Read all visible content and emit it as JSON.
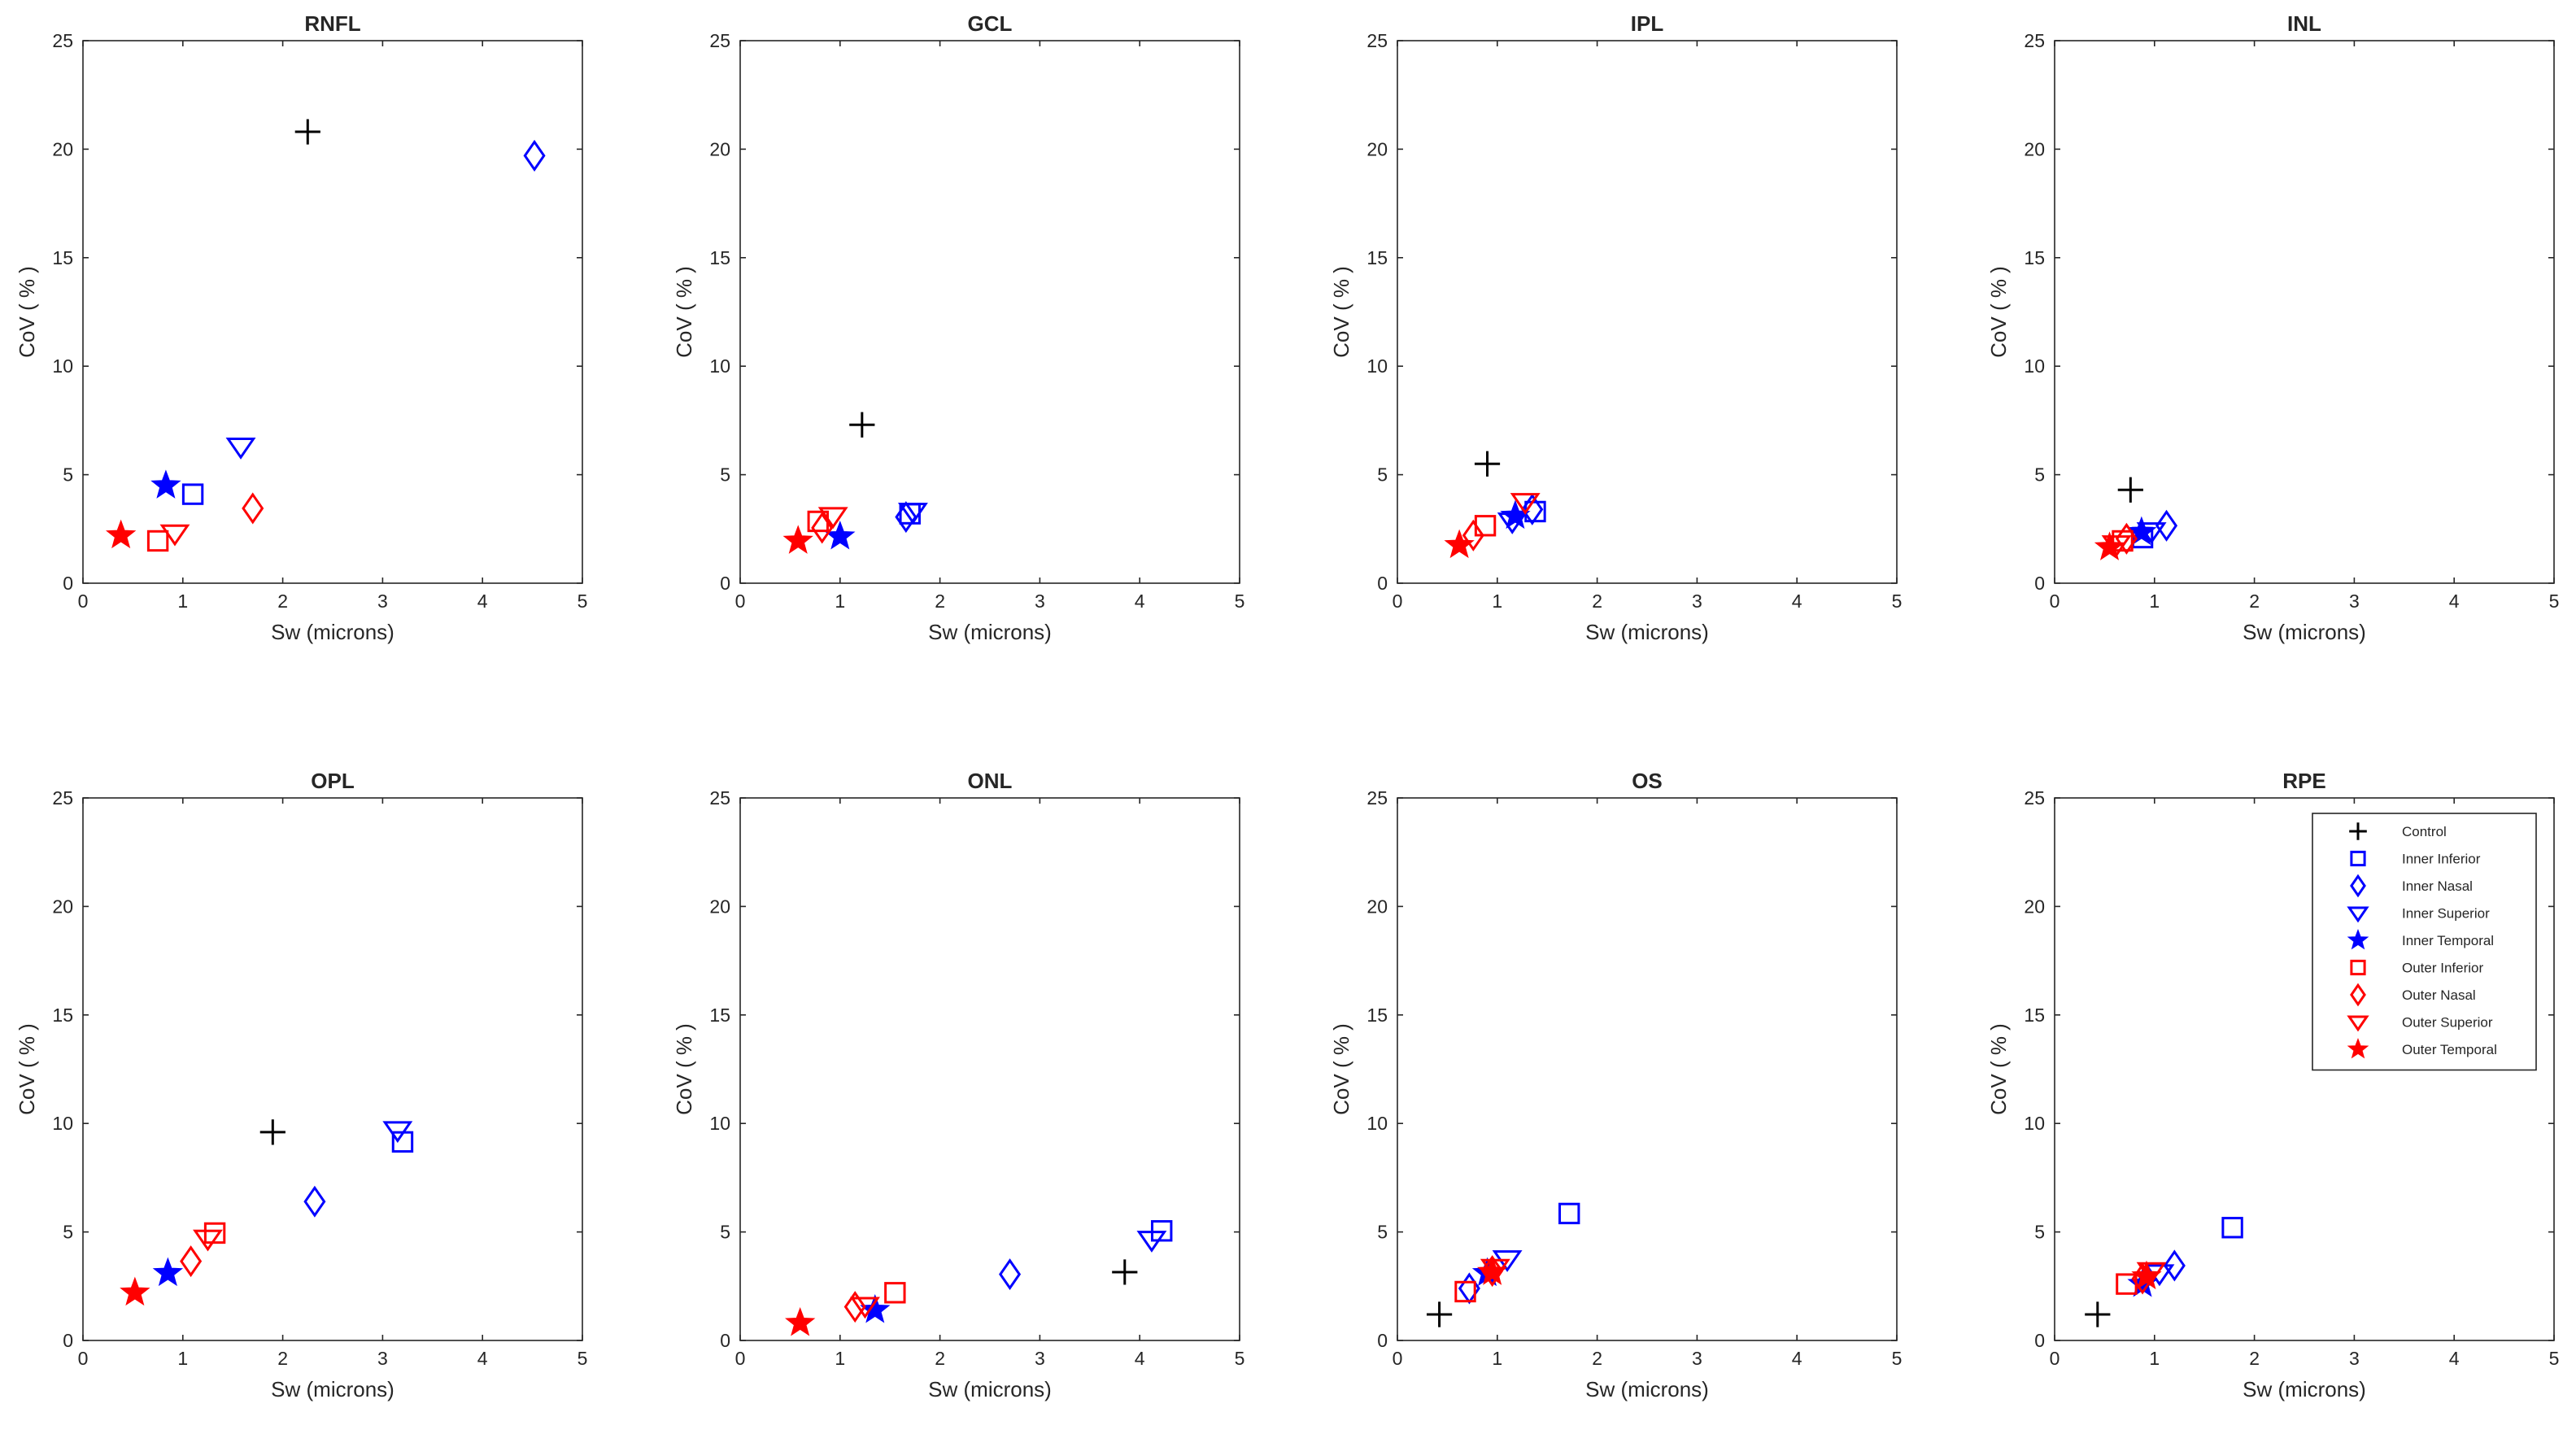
{
  "chart_data": {
    "type": "scatter",
    "xlabel": "Sw (microns)",
    "ylabel": "CoV ( % )",
    "xlim": [
      0,
      5
    ],
    "ylim": [
      0,
      25
    ],
    "xticks": [
      0,
      1,
      2,
      3,
      4,
      5
    ],
    "yticks": [
      0,
      5,
      10,
      15,
      20,
      25
    ],
    "legend_location": "top-right of RPE panel",
    "series_styles": [
      {
        "name": "Control",
        "marker": "plus",
        "color": "#000000"
      },
      {
        "name": "Inner Inferior",
        "marker": "square",
        "color": "#0000ff"
      },
      {
        "name": "Inner Nasal",
        "marker": "diamond",
        "color": "#0000ff"
      },
      {
        "name": "Inner Superior",
        "marker": "triangle-down",
        "color": "#0000ff"
      },
      {
        "name": "Inner Temporal",
        "marker": "star",
        "color": "#0000ff"
      },
      {
        "name": "Outer Inferior",
        "marker": "square",
        "color": "#ff0000"
      },
      {
        "name": "Outer Nasal",
        "marker": "diamond",
        "color": "#ff0000"
      },
      {
        "name": "Outer Superior",
        "marker": "triangle-down",
        "color": "#ff0000"
      },
      {
        "name": "Outer Temporal",
        "marker": "star",
        "color": "#ff0000"
      }
    ],
    "panels": [
      {
        "title": "RNFL",
        "points": [
          {
            "series": "Control",
            "x": 2.25,
            "y": 20.8
          },
          {
            "series": "Inner Inferior",
            "x": 1.1,
            "y": 4.1
          },
          {
            "series": "Inner Nasal",
            "x": 4.52,
            "y": 19.7
          },
          {
            "series": "Inner Superior",
            "x": 1.58,
            "y": 6.3
          },
          {
            "series": "Inner Temporal",
            "x": 0.83,
            "y": 4.5
          },
          {
            "series": "Outer Inferior",
            "x": 0.75,
            "y": 1.95
          },
          {
            "series": "Outer Nasal",
            "x": 1.7,
            "y": 3.45
          },
          {
            "series": "Outer Superior",
            "x": 0.92,
            "y": 2.3
          },
          {
            "series": "Outer Temporal",
            "x": 0.38,
            "y": 2.2
          }
        ]
      },
      {
        "title": "GCL",
        "points": [
          {
            "series": "Control",
            "x": 1.22,
            "y": 7.3
          },
          {
            "series": "Inner Inferior",
            "x": 1.7,
            "y": 3.2
          },
          {
            "series": "Inner Nasal",
            "x": 1.66,
            "y": 3.05
          },
          {
            "series": "Inner Superior",
            "x": 1.73,
            "y": 3.3
          },
          {
            "series": "Inner Temporal",
            "x": 1.0,
            "y": 2.15
          },
          {
            "series": "Outer Inferior",
            "x": 0.78,
            "y": 2.85
          },
          {
            "series": "Outer Nasal",
            "x": 0.82,
            "y": 2.55
          },
          {
            "series": "Outer Superior",
            "x": 0.93,
            "y": 3.1
          },
          {
            "series": "Outer Temporal",
            "x": 0.58,
            "y": 1.95
          }
        ]
      },
      {
        "title": "IPL",
        "points": [
          {
            "series": "Control",
            "x": 0.9,
            "y": 5.5
          },
          {
            "series": "Inner Inferior",
            "x": 1.38,
            "y": 3.3
          },
          {
            "series": "Inner Nasal",
            "x": 1.35,
            "y": 3.4
          },
          {
            "series": "Inner Superior",
            "x": 1.15,
            "y": 2.85
          },
          {
            "series": "Inner Temporal",
            "x": 1.18,
            "y": 3.1
          },
          {
            "series": "Outer Inferior",
            "x": 0.88,
            "y": 2.65
          },
          {
            "series": "Outer Nasal",
            "x": 0.76,
            "y": 2.2
          },
          {
            "series": "Outer Superior",
            "x": 1.28,
            "y": 3.75
          },
          {
            "series": "Outer Temporal",
            "x": 0.62,
            "y": 1.75
          }
        ]
      },
      {
        "title": "INL",
        "points": [
          {
            "series": "Control",
            "x": 0.76,
            "y": 4.3
          },
          {
            "series": "Inner Inferior",
            "x": 0.88,
            "y": 2.1
          },
          {
            "series": "Inner Nasal",
            "x": 1.12,
            "y": 2.65
          },
          {
            "series": "Inner Superior",
            "x": 0.97,
            "y": 2.4
          },
          {
            "series": "Inner Temporal",
            "x": 0.87,
            "y": 2.35
          },
          {
            "series": "Outer Inferior",
            "x": 0.68,
            "y": 1.95
          },
          {
            "series": "Outer Nasal",
            "x": 0.72,
            "y": 2.05
          },
          {
            "series": "Outer Superior",
            "x": 0.62,
            "y": 1.8
          },
          {
            "series": "Outer Temporal",
            "x": 0.55,
            "y": 1.65
          }
        ]
      },
      {
        "title": "OPL",
        "points": [
          {
            "series": "Control",
            "x": 1.9,
            "y": 9.6
          },
          {
            "series": "Inner Inferior",
            "x": 3.2,
            "y": 9.15
          },
          {
            "series": "Inner Nasal",
            "x": 2.32,
            "y": 6.4
          },
          {
            "series": "Inner Superior",
            "x": 3.15,
            "y": 9.7
          },
          {
            "series": "Inner Temporal",
            "x": 0.85,
            "y": 3.1
          },
          {
            "series": "Outer Inferior",
            "x": 1.32,
            "y": 4.95
          },
          {
            "series": "Outer Nasal",
            "x": 1.08,
            "y": 3.65
          },
          {
            "series": "Outer Superior",
            "x": 1.25,
            "y": 4.7
          },
          {
            "series": "Outer Temporal",
            "x": 0.52,
            "y": 2.2
          }
        ]
      },
      {
        "title": "ONL",
        "points": [
          {
            "series": "Control",
            "x": 3.85,
            "y": 3.15
          },
          {
            "series": "Inner Inferior",
            "x": 4.22,
            "y": 5.05
          },
          {
            "series": "Inner Nasal",
            "x": 2.7,
            "y": 3.05
          },
          {
            "series": "Inner Superior",
            "x": 4.12,
            "y": 4.65
          },
          {
            "series": "Inner Temporal",
            "x": 1.35,
            "y": 1.4
          },
          {
            "series": "Outer Inferior",
            "x": 1.55,
            "y": 2.2
          },
          {
            "series": "Outer Nasal",
            "x": 1.15,
            "y": 1.55
          },
          {
            "series": "Outer Superior",
            "x": 1.25,
            "y": 1.6
          },
          {
            "series": "Outer Temporal",
            "x": 0.6,
            "y": 0.8
          }
        ]
      },
      {
        "title": "OS",
        "points": [
          {
            "series": "Control",
            "x": 0.42,
            "y": 1.2
          },
          {
            "series": "Inner Inferior",
            "x": 1.72,
            "y": 5.85
          },
          {
            "series": "Inner Nasal",
            "x": 0.72,
            "y": 2.4
          },
          {
            "series": "Inner Superior",
            "x": 1.1,
            "y": 3.75
          },
          {
            "series": "Inner Temporal",
            "x": 0.9,
            "y": 3.1
          },
          {
            "series": "Outer Inferior",
            "x": 0.68,
            "y": 2.25
          },
          {
            "series": "Outer Nasal",
            "x": 0.95,
            "y": 3.2
          },
          {
            "series": "Outer Superior",
            "x": 0.98,
            "y": 3.35
          },
          {
            "series": "Outer Temporal",
            "x": 0.95,
            "y": 3.15
          }
        ]
      },
      {
        "title": "RPE",
        "points": [
          {
            "series": "Control",
            "x": 0.43,
            "y": 1.2
          },
          {
            "series": "Inner Inferior",
            "x": 1.78,
            "y": 5.2
          },
          {
            "series": "Inner Nasal",
            "x": 1.2,
            "y": 3.45
          },
          {
            "series": "Inner Superior",
            "x": 1.05,
            "y": 3.1
          },
          {
            "series": "Inner Temporal",
            "x": 0.88,
            "y": 2.6
          },
          {
            "series": "Outer Inferior",
            "x": 0.72,
            "y": 2.6
          },
          {
            "series": "Outer Nasal",
            "x": 0.88,
            "y": 2.85
          },
          {
            "series": "Outer Superior",
            "x": 0.97,
            "y": 3.2
          },
          {
            "series": "Outer Temporal",
            "x": 0.92,
            "y": 2.95
          }
        ]
      }
    ]
  }
}
